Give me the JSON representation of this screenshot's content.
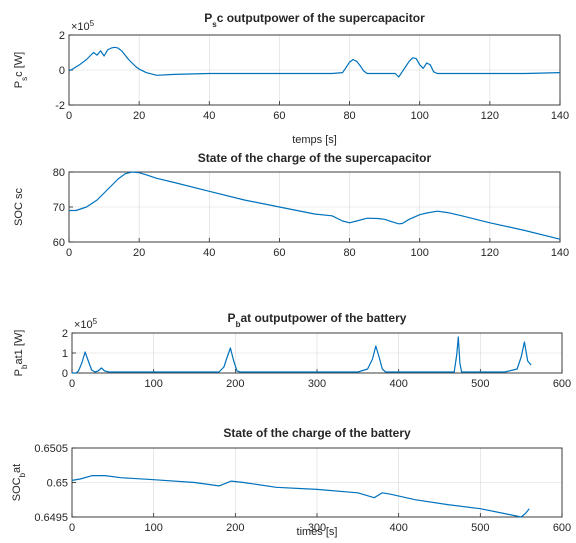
{
  "chart_data": [
    {
      "type": "line",
      "title": {
        "main": "P",
        "sub": "s",
        "rest": "c outputpower of the supercapacitor"
      },
      "xlabel": "temps [s]",
      "ylabel": {
        "main": "P",
        "sub": "s",
        "rest": "c  [W]"
      },
      "xlim": [
        0,
        140
      ],
      "ylim": [
        -2,
        2
      ],
      "xticks": [
        0,
        20,
        40,
        60,
        80,
        100,
        120,
        140
      ],
      "yticks": [
        -2,
        0,
        2
      ],
      "exponent": {
        "base": "×10",
        "power": "5"
      },
      "grid": true,
      "series": [
        {
          "x": [
            0,
            1,
            3,
            5,
            6,
            7,
            8,
            9,
            10,
            11,
            12,
            13,
            14,
            15,
            16,
            17,
            18,
            19,
            20,
            22,
            25,
            30,
            40,
            50,
            60,
            70,
            75,
            78,
            79,
            80,
            81,
            82,
            83,
            84,
            85,
            88,
            90,
            93,
            94,
            95,
            96,
            97,
            98,
            99,
            100,
            101,
            102,
            103,
            104,
            105,
            108,
            115,
            120,
            130,
            140
          ],
          "y": [
            -0.05,
            0.05,
            0.3,
            0.6,
            0.8,
            1.0,
            0.85,
            1.1,
            0.8,
            1.15,
            1.25,
            1.3,
            1.25,
            1.1,
            0.85,
            0.6,
            0.4,
            0.2,
            0.05,
            -0.15,
            -0.3,
            -0.25,
            -0.2,
            -0.2,
            -0.2,
            -0.2,
            -0.2,
            -0.15,
            0.15,
            0.45,
            0.6,
            0.5,
            0.25,
            -0.05,
            -0.2,
            -0.2,
            -0.2,
            -0.2,
            -0.4,
            -0.1,
            0.2,
            0.5,
            0.7,
            0.65,
            0.3,
            0.1,
            0.4,
            0.3,
            -0.1,
            -0.2,
            -0.2,
            -0.2,
            -0.2,
            -0.2,
            -0.15
          ]
        }
      ]
    },
    {
      "type": "line",
      "title": {
        "main": "State of the charge of the supercapacitor"
      },
      "xlabel": "",
      "ylabel": {
        "main": "SOC sc"
      },
      "xlim": [
        0,
        140
      ],
      "ylim": [
        60,
        80
      ],
      "xticks": [
        0,
        20,
        40,
        60,
        80,
        100,
        120,
        140
      ],
      "yticks": [
        60,
        70,
        80
      ],
      "grid": true,
      "series": [
        {
          "x": [
            0,
            2,
            5,
            8,
            10,
            12,
            14,
            16,
            18,
            20,
            22,
            25,
            30,
            40,
            50,
            60,
            70,
            75,
            78,
            80,
            82,
            85,
            88,
            90,
            92,
            94,
            95,
            97,
            100,
            102,
            105,
            108,
            112,
            120,
            130,
            140
          ],
          "y": [
            69,
            69,
            70,
            72,
            74,
            76,
            78,
            79.5,
            80,
            79.8,
            79.2,
            78.2,
            77,
            74.5,
            72,
            70,
            68,
            67.5,
            66,
            65.5,
            66,
            66.8,
            66.7,
            66.5,
            65.8,
            65.2,
            65.3,
            66.5,
            67.8,
            68.3,
            68.8,
            68.4,
            67.5,
            65.5,
            63.3,
            60.8
          ]
        }
      ]
    },
    {
      "type": "line",
      "title": {
        "main": "P",
        "sub": "b",
        "rest": "at outputpower of the battery"
      },
      "xlabel": "",
      "ylabel": {
        "main": "P",
        "sub": "b",
        "rest": "at1  [W]"
      },
      "xlim": [
        0,
        600
      ],
      "ylim": [
        0,
        2
      ],
      "xticks": [
        0,
        100,
        200,
        300,
        400,
        500,
        600
      ],
      "yticks": [
        0,
        1,
        2
      ],
      "exponent": {
        "base": "×10",
        "power": "5"
      },
      "grid": true,
      "series": [
        {
          "x": [
            0,
            5,
            8,
            12,
            16,
            20,
            24,
            28,
            32,
            36,
            40,
            45,
            60,
            80,
            100,
            150,
            180,
            186,
            190,
            194,
            198,
            202,
            206,
            210,
            250,
            300,
            350,
            362,
            368,
            372,
            376,
            380,
            384,
            390,
            420,
            450,
            468,
            471,
            473,
            475,
            477,
            480,
            500,
            530,
            545,
            550,
            554,
            558,
            562
          ],
          "y": [
            0,
            0,
            0.1,
            0.5,
            1.05,
            0.6,
            0.15,
            0.05,
            0.1,
            0.25,
            0.1,
            0.05,
            0.05,
            0.05,
            0.05,
            0.05,
            0.05,
            0.3,
            0.8,
            1.25,
            0.6,
            0.1,
            0.05,
            0.05,
            0.05,
            0.05,
            0.05,
            0.2,
            0.7,
            1.35,
            0.8,
            0.2,
            0.05,
            0.05,
            0.05,
            0.05,
            0.05,
            0.9,
            1.8,
            0.5,
            0.05,
            0.05,
            0.05,
            0.05,
            0.2,
            0.8,
            1.55,
            0.6,
            0.4
          ]
        }
      ]
    },
    {
      "type": "line",
      "title": {
        "main": "State of the charge of the battery"
      },
      "xlabel": "times [s]",
      "ylabel": {
        "main": "SOC",
        "sub": "b",
        "rest": "at"
      },
      "xlim": [
        0,
        600
      ],
      "ylim": [
        0.6495,
        0.6505
      ],
      "xticks": [
        0,
        100,
        200,
        300,
        400,
        500,
        600
      ],
      "yticks": [
        0.6495,
        0.65,
        0.6505
      ],
      "ytickLabels": [
        "0.6495",
        "0.65",
        "0.6505"
      ],
      "grid": true,
      "series": [
        {
          "x": [
            0,
            10,
            25,
            40,
            60,
            100,
            150,
            180,
            195,
            210,
            250,
            300,
            350,
            370,
            380,
            390,
            420,
            460,
            500,
            530,
            550,
            555,
            560
          ],
          "y": [
            0.65003,
            0.65005,
            0.6501,
            0.6501,
            0.65007,
            0.65004,
            0.65,
            0.64995,
            0.65002,
            0.65,
            0.64993,
            0.6499,
            0.64985,
            0.64978,
            0.64985,
            0.64983,
            0.64975,
            0.64968,
            0.64962,
            0.64955,
            0.6495,
            0.64955,
            0.64962
          ]
        }
      ]
    }
  ]
}
